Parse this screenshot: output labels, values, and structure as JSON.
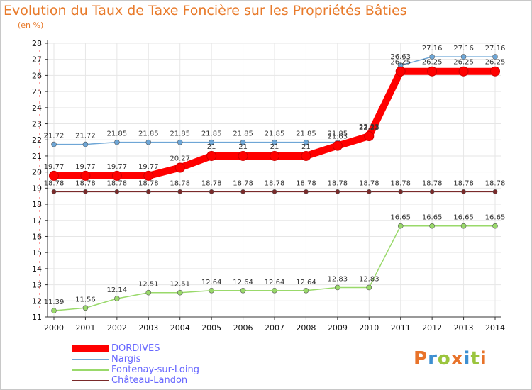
{
  "title": "Evolution du Taux de Taxe Foncière sur les Propriétés Bâties",
  "unit_label": "(en %)",
  "logo_text": "Proxiti",
  "colors": {
    "title": "#e87a2a",
    "legend_text": "#6666ff",
    "grid": "#e6e6e6",
    "axis": "#333333"
  },
  "chart_data": {
    "type": "line",
    "title": "Evolution du Taux de Taxe Foncière sur les Propriétés Bâties",
    "ylabel": "(en %)",
    "xlabel": "",
    "x": [
      2000,
      2001,
      2002,
      2003,
      2004,
      2005,
      2006,
      2007,
      2008,
      2009,
      2010,
      2011,
      2012,
      2013,
      2014
    ],
    "ylim": [
      11,
      28
    ],
    "yticks": [
      11,
      12,
      13,
      14,
      15,
      16,
      17,
      18,
      19,
      20,
      21,
      22,
      23,
      24,
      25,
      26,
      27,
      28
    ],
    "grid": true,
    "legend_position": "bottom-left",
    "series": [
      {
        "name": "DORDIVES",
        "color": "#ff0000",
        "values": [
          19.77,
          19.77,
          19.77,
          19.77,
          20.27,
          21,
          21,
          21,
          21,
          21.63,
          22.23,
          26.25,
          26.25,
          26.25,
          26.25
        ],
        "labels": [
          "19.77",
          "19.77",
          "19.77",
          "19.77",
          "20.27",
          "21",
          "21",
          "21",
          "21",
          "21.63",
          "22.23",
          "26.25",
          "26.25",
          "26.25",
          "26.25"
        ]
      },
      {
        "name": "Nargis",
        "color": "#6ea6d6",
        "values": [
          21.72,
          21.72,
          21.85,
          21.85,
          21.85,
          21.85,
          21.85,
          21.85,
          21.85,
          21.85,
          22.23,
          26.63,
          27.16,
          27.16,
          27.16
        ],
        "labels": [
          "21.72",
          "21.72",
          "21.85",
          "21.85",
          "21.85",
          "21.85",
          "21.85",
          "21.85",
          "21.85",
          "21.85",
          "22.23",
          "26.63",
          "27.16",
          "27.16",
          "27.16"
        ]
      },
      {
        "name": "Fontenay-sur-Loing",
        "color": "#99d96a",
        "values": [
          11.39,
          11.56,
          12.14,
          12.51,
          12.51,
          12.64,
          12.64,
          12.64,
          12.64,
          12.83,
          12.83,
          16.65,
          16.65,
          16.65,
          16.65
        ],
        "labels": [
          "11.39",
          "11.56",
          "12.14",
          "12.51",
          "12.51",
          "12.64",
          "12.64",
          "12.64",
          "12.64",
          "12.83",
          "12.83",
          "16.65",
          "16.65",
          "16.65",
          "16.65"
        ]
      },
      {
        "name": "Château-Landon",
        "color": "#7a2a2a",
        "values": [
          18.78,
          18.78,
          18.78,
          18.78,
          18.78,
          18.78,
          18.78,
          18.78,
          18.78,
          18.78,
          18.78,
          18.78,
          18.78,
          18.78,
          18.78
        ],
        "labels": [
          "18.78",
          "18.78",
          "18.78",
          "18.78",
          "18.78",
          "18.78",
          "18.78",
          "18.78",
          "18.78",
          "18.78",
          "18.78",
          "18.78",
          "18.78",
          "18.78",
          "18.78"
        ]
      }
    ]
  }
}
